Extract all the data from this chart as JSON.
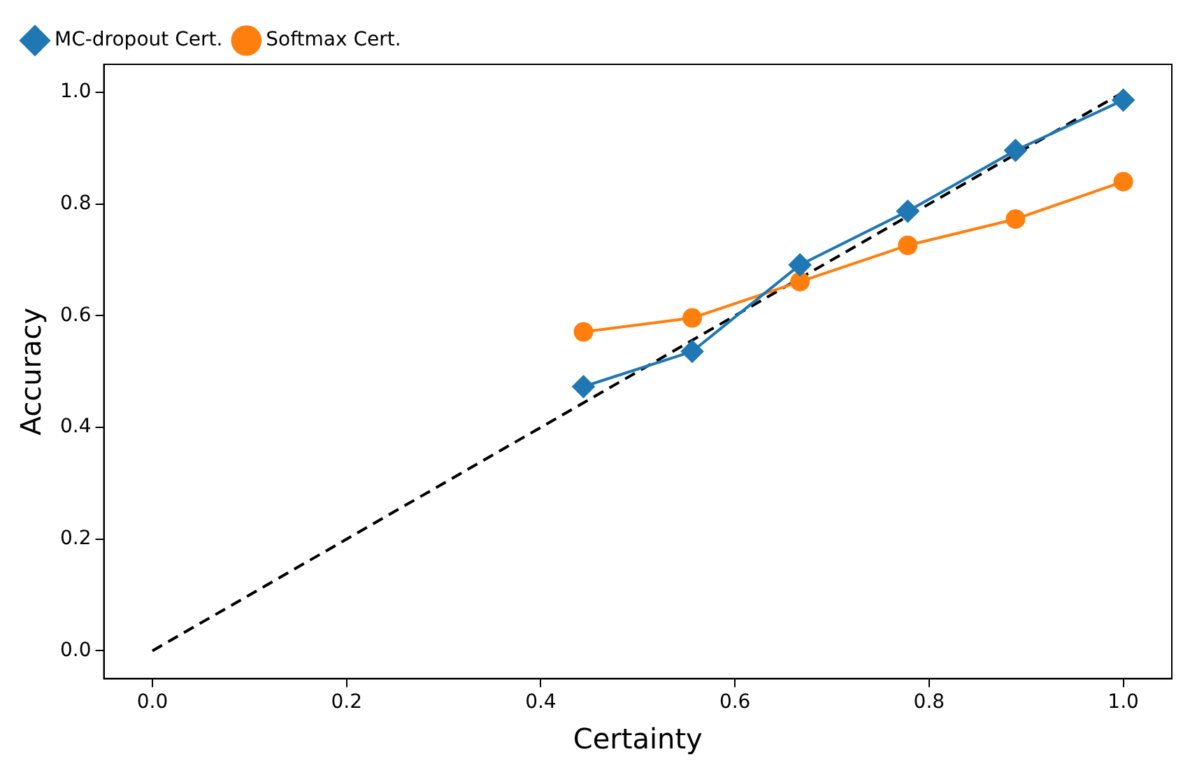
{
  "chart_data": {
    "type": "line",
    "xlabel": "Certainty",
    "ylabel": "Accuracy",
    "xlim": [
      -0.05,
      1.05
    ],
    "ylim": [
      -0.05,
      1.05
    ],
    "xticks": [
      {
        "value": 0,
        "label": "0.0"
      },
      {
        "value": 0.2,
        "label": "0.2"
      },
      {
        "value": 0.4,
        "label": "0.4"
      },
      {
        "value": 0.6,
        "label": "0.6"
      },
      {
        "value": 0.8,
        "label": "0.8"
      },
      {
        "value": 1,
        "label": "1.0"
      }
    ],
    "yticks": [
      {
        "value": 0,
        "label": "0.0"
      },
      {
        "value": 0.2,
        "label": "0.2"
      },
      {
        "value": 0.4,
        "label": "0.4"
      },
      {
        "value": 0.6,
        "label": "0.6"
      },
      {
        "value": 0.8,
        "label": "0.8"
      },
      {
        "value": 1,
        "label": "1.0"
      }
    ],
    "grid": false,
    "legend": "top left",
    "series": [
      {
        "name": "MC-dropout Cert.",
        "color": "#1f77b4",
        "marker": "diamond",
        "line_style": "solid",
        "x": [
          0.444,
          0.556,
          0.667,
          0.778,
          0.889,
          1.0
        ],
        "values": [
          0.473,
          0.536,
          0.691,
          0.787,
          0.896,
          0.986
        ]
      },
      {
        "name": "Softmax Cert.",
        "color": "#ff7f0e",
        "marker": "circle",
        "line_style": "solid",
        "x": [
          0.444,
          0.556,
          0.667,
          0.778,
          0.889,
          1.0
        ],
        "values": [
          0.571,
          0.596,
          0.661,
          0.726,
          0.773,
          0.84
        ]
      },
      {
        "color": "#000000",
        "marker": "none",
        "line_style": "dashed",
        "x": [
          0,
          1
        ],
        "values": [
          0,
          1
        ]
      }
    ]
  }
}
